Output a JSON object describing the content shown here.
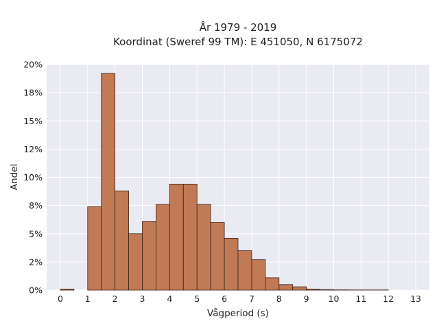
{
  "chart_data": {
    "type": "bar",
    "title_lines": [
      "År 1979 - 2019",
      "Koordinat (Sweref 99 TM): E 451050, N 6175072"
    ],
    "xlabel": "Vågperiod (s)",
    "ylabel": "Andel",
    "xlim": [
      -0.5,
      13.5
    ],
    "ylim": [
      0,
      20
    ],
    "x_ticks": [
      "0",
      "1",
      "2",
      "3",
      "4",
      "5",
      "6",
      "7",
      "8",
      "9",
      "10",
      "11",
      "12",
      "13"
    ],
    "y_ticks": [
      {
        "value": 0,
        "label": "0%"
      },
      {
        "value": 2.5,
        "label": "2%"
      },
      {
        "value": 5,
        "label": "5%"
      },
      {
        "value": 7.5,
        "label": "8%"
      },
      {
        "value": 10,
        "label": "10%"
      },
      {
        "value": 12.5,
        "label": "12%"
      },
      {
        "value": 15,
        "label": "15%"
      },
      {
        "value": 17.5,
        "label": "18%"
      },
      {
        "value": 20,
        "label": "20%"
      }
    ],
    "grid": true,
    "colors": {
      "bar_fill": "#c07a55",
      "bar_edge": "#3a2418",
      "plot_bg": "#eaeaf2",
      "grid": "#ffffff"
    },
    "bins": [
      {
        "x0": 0,
        "x1": 0.5,
        "value": 0.1
      },
      {
        "x0": 1,
        "x1": 1.5,
        "value": 7.4
      },
      {
        "x0": 1.5,
        "x1": 2,
        "value": 19.2
      },
      {
        "x0": 2,
        "x1": 2.5,
        "value": 8.8
      },
      {
        "x0": 2.5,
        "x1": 3,
        "value": 5.0
      },
      {
        "x0": 3,
        "x1": 3.5,
        "value": 6.1
      },
      {
        "x0": 3.5,
        "x1": 4,
        "value": 7.6
      },
      {
        "x0": 4,
        "x1": 4.5,
        "value": 9.4
      },
      {
        "x0": 4.5,
        "x1": 5,
        "value": 9.4
      },
      {
        "x0": 5,
        "x1": 5.5,
        "value": 7.6
      },
      {
        "x0": 5.5,
        "x1": 6,
        "value": 6.0
      },
      {
        "x0": 6,
        "x1": 6.5,
        "value": 4.6
      },
      {
        "x0": 6.5,
        "x1": 7,
        "value": 3.5
      },
      {
        "x0": 7,
        "x1": 7.5,
        "value": 2.7
      },
      {
        "x0": 7.5,
        "x1": 8,
        "value": 1.1
      },
      {
        "x0": 8,
        "x1": 8.5,
        "value": 0.5
      },
      {
        "x0": 8.5,
        "x1": 9,
        "value": 0.3
      },
      {
        "x0": 9,
        "x1": 9.5,
        "value": 0.1
      },
      {
        "x0": 9.5,
        "x1": 10,
        "value": 0.05
      },
      {
        "x0": 10,
        "x1": 10.5,
        "value": 0.03
      },
      {
        "x0": 10.5,
        "x1": 11,
        "value": 0.02
      },
      {
        "x0": 11,
        "x1": 11.5,
        "value": 0.02
      },
      {
        "x0": 11.5,
        "x1": 12,
        "value": 0.02
      }
    ]
  }
}
